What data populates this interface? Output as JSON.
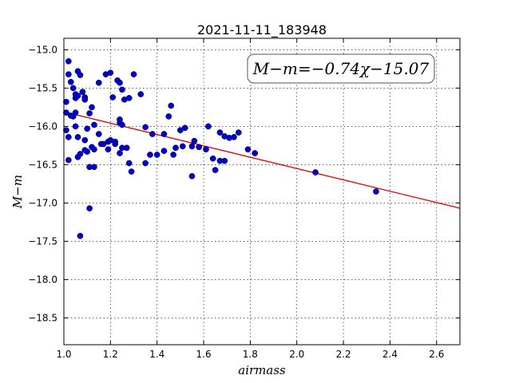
{
  "chart_data": {
    "type": "scatter",
    "title": "2021-11-11_183948",
    "xlabel": "airmass",
    "ylabel": "M−m",
    "xlim": [
      1.0,
      2.7
    ],
    "ylim": [
      -18.85,
      -14.8
    ],
    "y_inverted": true,
    "xticks": [
      "1.0",
      "1.2",
      "1.4",
      "1.6",
      "1.8",
      "2.0",
      "2.2",
      "2.4",
      "2.6"
    ],
    "xtick_values": [
      1.0,
      1.2,
      1.4,
      1.6,
      1.8,
      2.0,
      2.2,
      2.4,
      2.6
    ],
    "yticks": [
      "−15.0",
      "−15.5",
      "−16.0",
      "−16.5",
      "−17.0",
      "−17.5",
      "−18.0",
      "−18.5"
    ],
    "ytick_values": [
      -15.0,
      -15.5,
      -16.0,
      -16.5,
      -17.0,
      -17.5,
      -18.0,
      -18.5
    ],
    "grid": true,
    "annotation": "M−m=−0.74χ−15.07",
    "fit": {
      "slope": -0.74,
      "intercept": -15.07,
      "color": "#dd0000"
    },
    "point_color": "#0000cc",
    "x": [
      1.01,
      1.02,
      1.02,
      1.03,
      1.04,
      1.05,
      1.05,
      1.06,
      1.06,
      1.07,
      1.08,
      1.09,
      1.09,
      1.1,
      1.11,
      1.12,
      1.13,
      1.15,
      1.16,
      1.18,
      1.19,
      1.2,
      1.21,
      1.23,
      1.24,
      1.25,
      1.26,
      1.28,
      1.3,
      1.33,
      1.01,
      1.02,
      1.04,
      1.05,
      1.06,
      1.07,
      1.09,
      1.1,
      1.12,
      1.15,
      1.17,
      1.2,
      1.22,
      1.24,
      1.24,
      1.25,
      1.27,
      1.35,
      1.38,
      1.43,
      1.45,
      1.46,
      1.5,
      1.52,
      1.56,
      1.62,
      1.67,
      1.69,
      1.71,
      1.73,
      1.75,
      1.01,
      1.02,
      1.03,
      1.05,
      1.06,
      1.09,
      1.11,
      1.13,
      1.19,
      1.22,
      1.24,
      1.25,
      1.28,
      1.29,
      1.35,
      1.37,
      1.4,
      1.43,
      1.47,
      1.48,
      1.51,
      1.55,
      1.58,
      1.61,
      1.65,
      1.67,
      1.69,
      1.79,
      1.82,
      1.55,
      1.64,
      1.11,
      1.13,
      1.07,
      2.08,
      2.34
    ],
    "y": [
      -15.68,
      -15.15,
      -15.32,
      -15.42,
      -15.5,
      -15.58,
      -15.63,
      -15.28,
      -15.6,
      -15.33,
      -15.55,
      -15.62,
      -15.65,
      -16.03,
      -15.83,
      -15.75,
      -15.98,
      -15.43,
      -16.23,
      -15.32,
      -16.2,
      -15.3,
      -15.62,
      -15.4,
      -15.43,
      -15.52,
      -15.65,
      -15.63,
      -15.32,
      -15.58,
      -15.82,
      -16.14,
      -15.87,
      -16.0,
      -16.14,
      -16.36,
      -16.18,
      -16.33,
      -16.27,
      -16.1,
      -16.23,
      -16.18,
      -16.23,
      -15.91,
      -15.95,
      -15.98,
      -16.28,
      -16.01,
      -16.1,
      -16.1,
      -15.87,
      -15.73,
      -16.05,
      -16.02,
      -16.19,
      -16.0,
      -16.08,
      -16.13,
      -16.15,
      -16.14,
      -16.08,
      -16.05,
      -16.44,
      -15.86,
      -15.82,
      -16.4,
      -16.31,
      -16.53,
      -16.3,
      -16.3,
      -16.2,
      -16.35,
      -16.28,
      -16.48,
      -16.59,
      -16.48,
      -16.37,
      -16.37,
      -16.32,
      -16.37,
      -16.28,
      -16.26,
      -16.26,
      -16.27,
      -16.3,
      -16.57,
      -16.45,
      -16.45,
      -16.3,
      -16.35,
      -16.65,
      -16.42,
      -17.07,
      -16.53,
      -17.43,
      -16.6,
      -16.85
    ]
  }
}
